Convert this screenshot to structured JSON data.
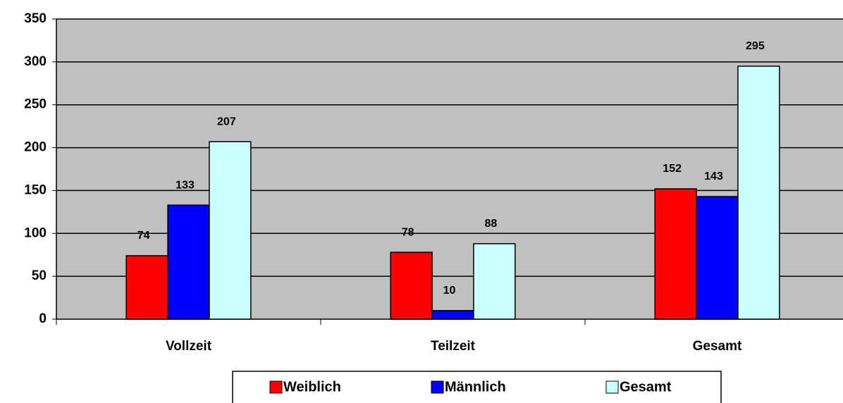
{
  "chart_data": {
    "type": "bar",
    "categories": [
      "Vollzeit",
      "Teilzeit",
      "Gesamt"
    ],
    "series": [
      {
        "name": "Weiblich",
        "color": "#ff0000",
        "values": [
          74,
          78,
          152
        ]
      },
      {
        "name": "Männlich",
        "color": "#0000ff",
        "values": [
          133,
          10,
          143
        ]
      },
      {
        "name": "Gesamt",
        "color": "#ccffff",
        "values": [
          207,
          88,
          295
        ]
      }
    ],
    "ylim": [
      0,
      350
    ],
    "yticks": [
      0,
      50,
      100,
      150,
      200,
      250,
      300,
      350
    ],
    "grid": true,
    "legend": "bottom"
  }
}
